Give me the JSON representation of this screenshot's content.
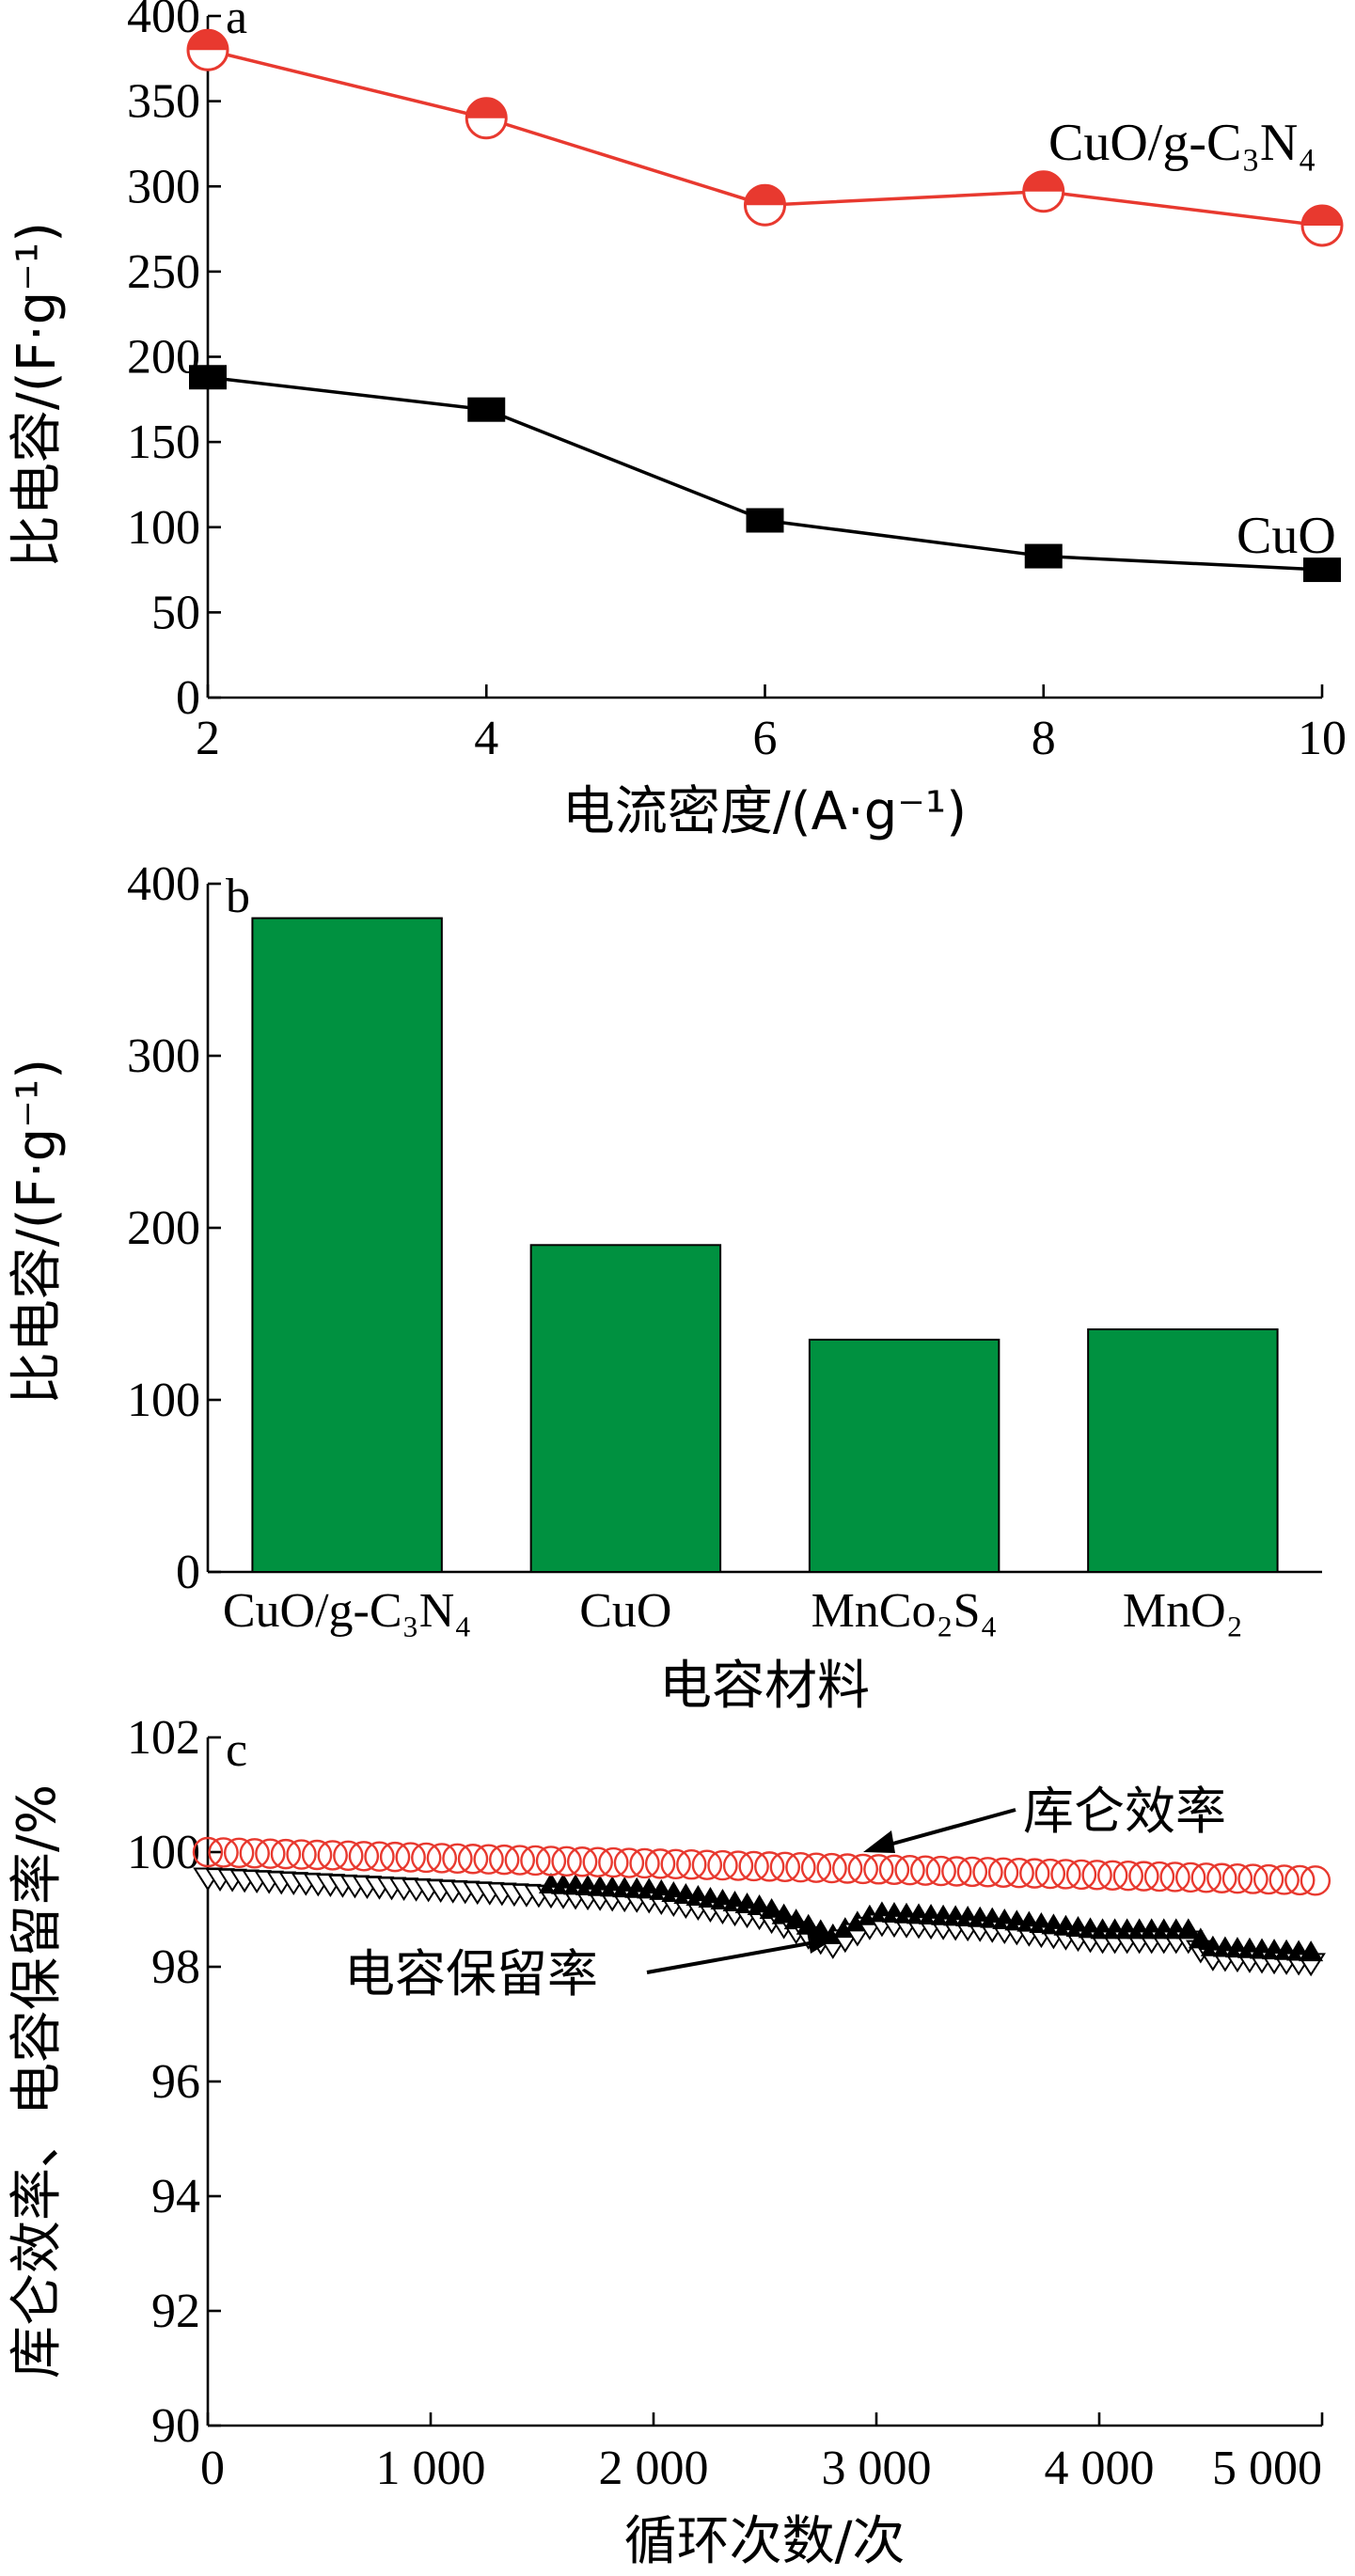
{
  "colors": {
    "red": "#e8392f",
    "black": "#000000",
    "green": "#009140"
  },
  "chart_data": [
    {
      "type": "line",
      "panel_label": "a",
      "xlabel": "电流密度/(A·g⁻¹)",
      "ylabel": "比电容/(F·g⁻¹)",
      "xlim": [
        2,
        10
      ],
      "ylim": [
        0,
        400
      ],
      "xticks": [
        "2",
        "4",
        "6",
        "8",
        "10"
      ],
      "yticks": [
        "0",
        "50",
        "100",
        "150",
        "200",
        "250",
        "300",
        "350",
        "400"
      ],
      "x": [
        2,
        4,
        6,
        8,
        10
      ],
      "series": [
        {
          "name": "CuO/g-C₃N₄",
          "values": [
            380,
            340,
            289,
            297,
            277
          ]
        },
        {
          "name": "CuO",
          "values": [
            188,
            169,
            104,
            83,
            75
          ]
        }
      ]
    },
    {
      "type": "bar",
      "panel_label": "b",
      "xlabel": "电容材料",
      "ylabel": "比电容/(F·g⁻¹)",
      "ylim": [
        0,
        400
      ],
      "yticks": [
        "0",
        "100",
        "200",
        "300",
        "400"
      ],
      "categories": [
        "CuO/g-C₃N₄",
        "CuO",
        "MnCo₂S₄",
        "MnO₂"
      ],
      "values": [
        380,
        190,
        135,
        141
      ]
    },
    {
      "type": "scatter",
      "panel_label": "c",
      "xlabel": "循环次数/次",
      "ylabel": "库仑效率、电容保留率/%",
      "xlim": [
        0,
        5000
      ],
      "ylim": [
        90,
        102
      ],
      "xticks": [
        "0",
        "1 000",
        "2 000",
        "3 000",
        "4 000",
        "5 000"
      ],
      "yticks": [
        "90",
        "92",
        "94",
        "96",
        "98",
        "100",
        "102"
      ],
      "annotations": [
        "库仑效率",
        "电容保留率"
      ],
      "series": [
        {
          "name": "库仑效率",
          "x": [
            0,
            1000,
            2000,
            3000,
            4000,
            5000
          ],
          "values": [
            100.0,
            99.9,
            99.8,
            99.7,
            99.6,
            99.5
          ]
        },
        {
          "name": "电容保留率",
          "x": [
            0,
            1000,
            1500,
            2000,
            2500,
            2800,
            3000,
            3500,
            4000,
            4400,
            4500,
            5000
          ],
          "values": [
            99.7,
            99.5,
            99.4,
            99.3,
            99.0,
            98.5,
            98.9,
            98.8,
            98.6,
            98.6,
            98.3,
            98.2
          ]
        }
      ]
    }
  ]
}
